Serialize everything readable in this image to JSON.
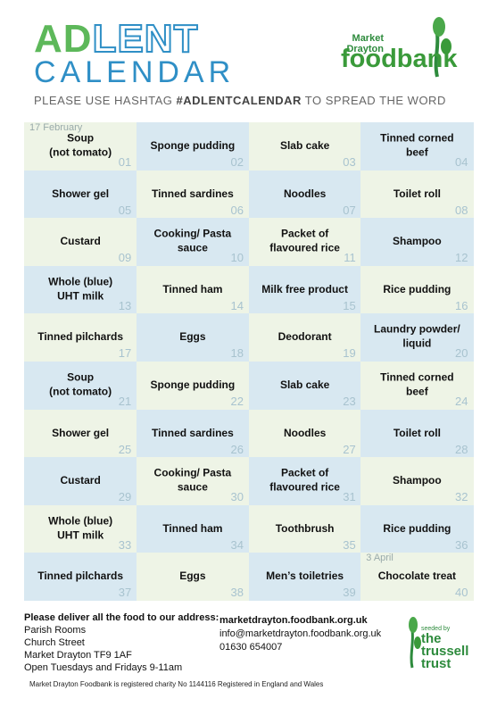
{
  "header": {
    "logo": {
      "ad": "AD",
      "lent": "LENT",
      "calendar": "CALENDAR"
    },
    "hashtag": {
      "before": "PLEASE USE HASHTAG ",
      "tag": "#ADLENTCALENDAR",
      "after": " TO SPREAD THE WORD"
    },
    "foodbank": {
      "town": "Market\nDrayton",
      "name": "foodbank"
    }
  },
  "calendar": {
    "cells": [
      {
        "item": "Soup\n(not tomato)",
        "number": "01",
        "note": "17 February"
      },
      {
        "item": "Sponge pudding",
        "number": "02"
      },
      {
        "item": "Slab cake",
        "number": "03"
      },
      {
        "item": "Tinned corned\nbeef",
        "number": "04"
      },
      {
        "item": "Shower gel",
        "number": "05"
      },
      {
        "item": "Tinned sardines",
        "number": "06"
      },
      {
        "item": "Noodles",
        "number": "07"
      },
      {
        "item": "Toilet roll",
        "number": "08"
      },
      {
        "item": "Custard",
        "number": "09"
      },
      {
        "item": "Cooking/ Pasta\nsauce",
        "number": "10"
      },
      {
        "item": "Packet of\nflavoured rice",
        "number": "11"
      },
      {
        "item": "Shampoo",
        "number": "12"
      },
      {
        "item": "Whole (blue)\nUHT milk",
        "number": "13"
      },
      {
        "item": "Tinned ham",
        "number": "14"
      },
      {
        "item": "Milk free product",
        "number": "15"
      },
      {
        "item": "Rice pudding",
        "number": "16"
      },
      {
        "item": "Tinned pilchards",
        "number": "17"
      },
      {
        "item": "Eggs",
        "number": "18"
      },
      {
        "item": "Deodorant",
        "number": "19"
      },
      {
        "item": "Laundry powder/\nliquid",
        "number": "20"
      },
      {
        "item": "Soup\n(not tomato)",
        "number": "21"
      },
      {
        "item": "Sponge pudding",
        "number": "22"
      },
      {
        "item": "Slab cake",
        "number": "23"
      },
      {
        "item": "Tinned corned\nbeef",
        "number": "24"
      },
      {
        "item": "Shower gel",
        "number": "25"
      },
      {
        "item": "Tinned sardines",
        "number": "26"
      },
      {
        "item": "Noodles",
        "number": "27"
      },
      {
        "item": "Toilet roll",
        "number": "28"
      },
      {
        "item": "Custard",
        "number": "29"
      },
      {
        "item": "Cooking/ Pasta\nsauce",
        "number": "30"
      },
      {
        "item": "Packet of\nflavoured rice",
        "number": "31"
      },
      {
        "item": "Shampoo",
        "number": "32"
      },
      {
        "item": "Whole (blue)\nUHT milk",
        "number": "33"
      },
      {
        "item": "Tinned ham",
        "number": "34"
      },
      {
        "item": "Toothbrush",
        "number": "35"
      },
      {
        "item": "Rice pudding",
        "number": "36"
      },
      {
        "item": "Tinned pilchards",
        "number": "37"
      },
      {
        "item": "Eggs",
        "number": "38"
      },
      {
        "item": "Men’s toiletries",
        "number": "39"
      },
      {
        "item": "Chocolate treat",
        "number": "40",
        "note": "3 April"
      }
    ]
  },
  "footer": {
    "deliver": {
      "heading": "Please deliver all the food to our address:",
      "lines": [
        "Parish Rooms",
        "Church Street",
        "Market Drayton TF9 1AF",
        "Open Tuesdays and Fridays 9-11am"
      ]
    },
    "contact": {
      "website": "marketdrayton.foodbank.org.uk",
      "email": "info@marketdrayton.foodbank.org.uk",
      "phone": "01630 654007"
    },
    "charity": "Market Drayton Foodbank is registered charity No 1144116 Registered in England and Wales",
    "trussell": {
      "seeded_by": "seeded by",
      "the": "the",
      "trussell": "trussell",
      "trust": "trust"
    }
  }
}
